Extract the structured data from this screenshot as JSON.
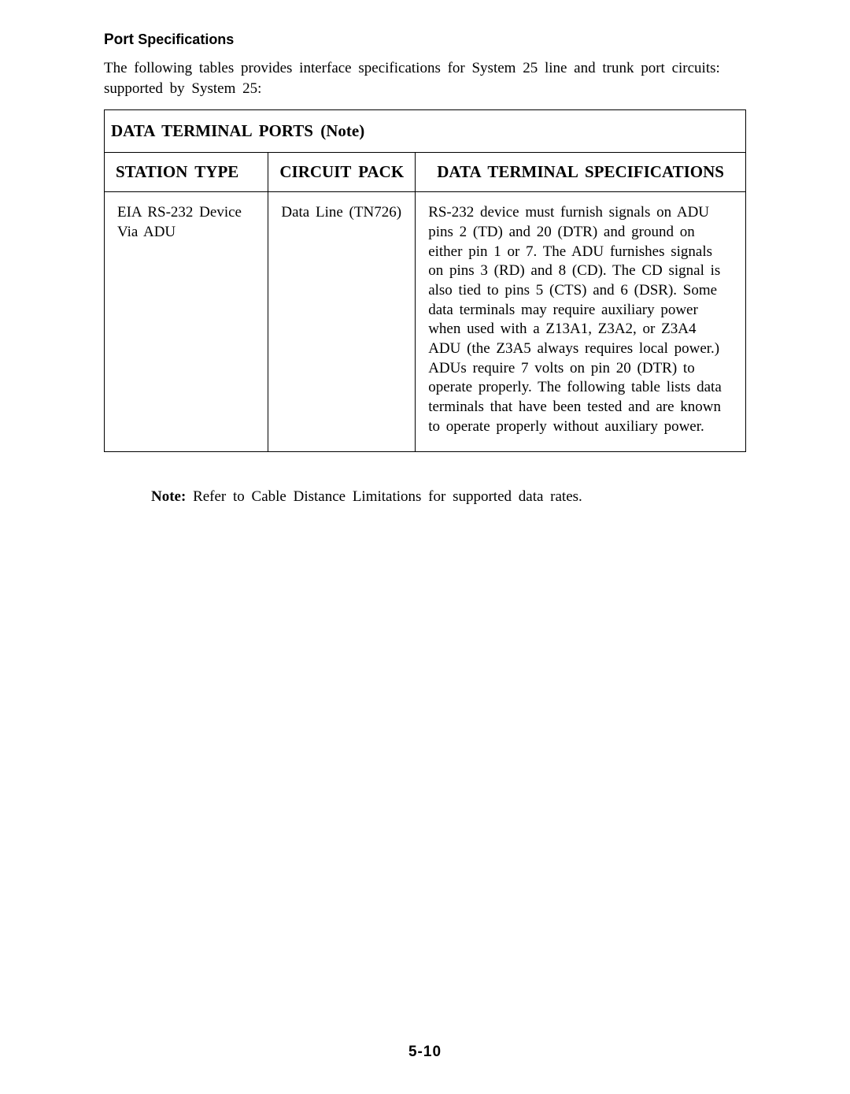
{
  "heading": {
    "part1": "Port",
    "part2": "Specifications"
  },
  "intro": "The following tables provides interface specifications for System 25 line and trunk port circuits: supported by System 25:",
  "table": {
    "title": "DATA TERMINAL PORTS (Note)",
    "headers": {
      "station": "STATION TYPE",
      "circuit": "CIRCUIT PACK",
      "spec": "DATA TERMINAL SPECIFICATIONS"
    },
    "row": {
      "station": "EIA RS-232 Device Via ADU",
      "circuit": "Data Line (TN726)",
      "spec": "RS-232 device must furnish signals on ADU pins 2 (TD) and 20 (DTR) and ground on either pin 1 or 7. The ADU furnishes signals on pins 3 (RD) and 8 (CD). The CD signal is also tied to pins 5 (CTS) and 6 (DSR). Some data terminals may require auxiliary power when used with a Z13A1, Z3A2, or Z3A4 ADU (the Z3A5 always requires local power.) ADUs require 7 volts on pin 20 (DTR) to operate properly. The following table lists data terminals that have been tested and are known to operate properly without auxiliary power."
    }
  },
  "note_label": "Note:",
  "note_text": "Refer to Cable Distance Limitations for supported data rates.",
  "page_number": "5-10"
}
